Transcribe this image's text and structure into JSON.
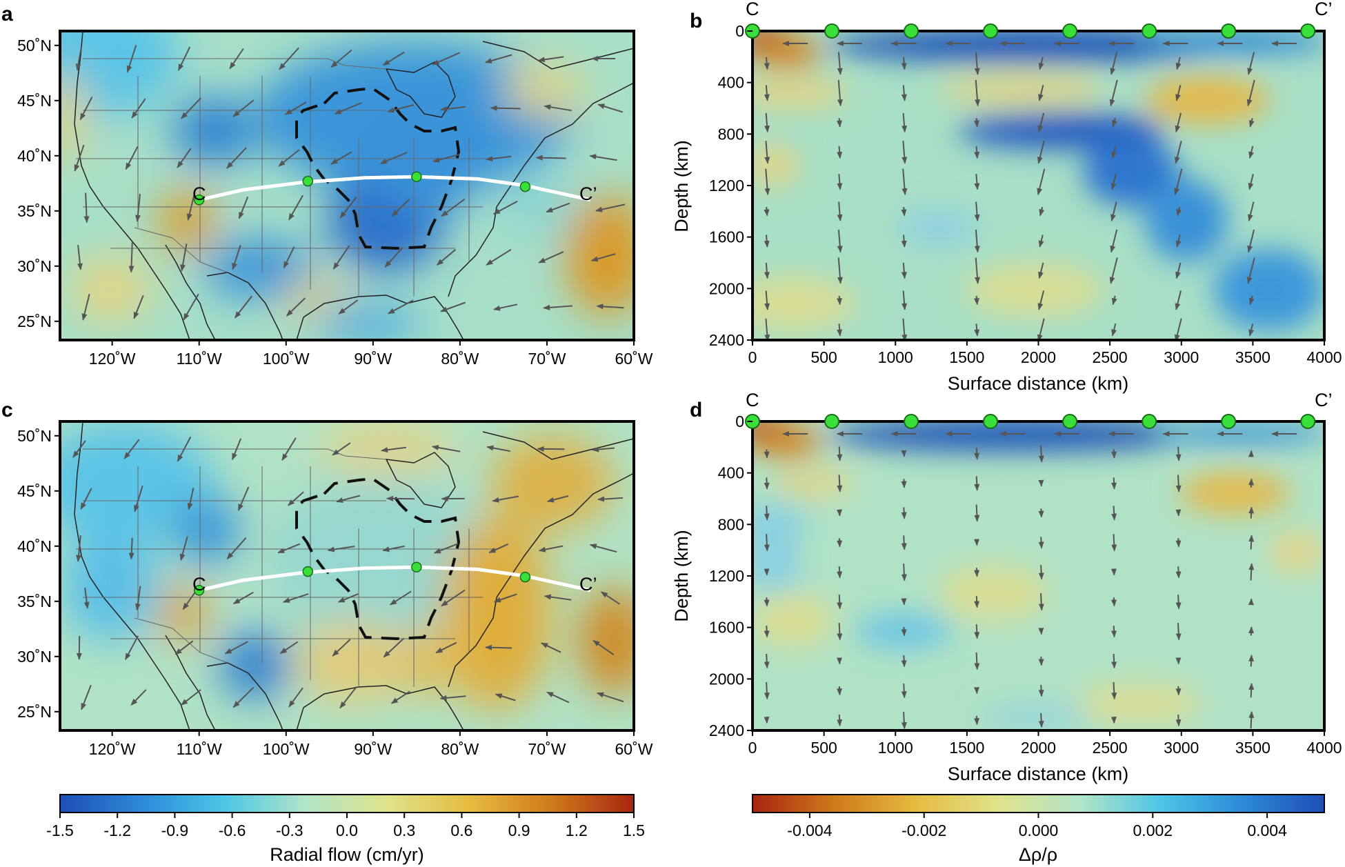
{
  "panels": {
    "a": {
      "label": "a"
    },
    "b": {
      "label": "b"
    },
    "c": {
      "label": "c"
    },
    "d": {
      "label": "d"
    }
  },
  "map": {
    "lat_ticks": [
      "50˚N",
      "45˚N",
      "40˚N",
      "35˚N",
      "30˚N",
      "25˚N"
    ],
    "lon_ticks": [
      "120˚W",
      "110˚W",
      "100˚W",
      "90˚W",
      "80˚W",
      "70˚W",
      "60˚W"
    ],
    "profile_start_label": "C",
    "profile_end_label": "C’",
    "profile_line": [
      [
        -110,
        36
      ],
      [
        -105,
        36.9
      ],
      [
        -98,
        37.6
      ],
      [
        -91,
        38.0
      ],
      [
        -85,
        38.1
      ],
      [
        -78,
        37.9
      ],
      [
        -72.5,
        37.3
      ],
      [
        -65,
        36
      ]
    ],
    "profile_points": [
      [
        -110,
        36
      ],
      [
        -97.5,
        37.7
      ],
      [
        -85,
        38.1
      ],
      [
        -72.5,
        37.2
      ]
    ]
  },
  "section": {
    "end_left": "C",
    "end_right": "C’",
    "depth_ticks": [
      "0",
      "400",
      "800",
      "1200",
      "1600",
      "2000",
      "2400"
    ],
    "distance_ticks": [
      "0",
      "500",
      "1000",
      "1500",
      "2000",
      "2500",
      "3000",
      "3500",
      "4000"
    ],
    "ylabel": "Depth (km)",
    "xlabel": "Surface distance (km)",
    "surface_points_km": [
      0,
      555,
      1110,
      1665,
      2220,
      2775,
      3330,
      3885
    ]
  },
  "colorbars": {
    "left": {
      "ticks": [
        "-1.5",
        "-1.2",
        "-0.9",
        "-0.6",
        "-0.3",
        "0.0",
        "0.3",
        "0.6",
        "0.9",
        "1.2",
        "1.5"
      ],
      "label": "Radial flow (cm/yr)",
      "stops": [
        "#1f4eb5",
        "#2c8ad8",
        "#4cc6e6",
        "#b2e5c8",
        "#dfe38a",
        "#e6bb40",
        "#cf7a1b",
        "#a82510"
      ]
    },
    "right": {
      "ticks": [
        "-0.004",
        "-0.002",
        "0.000",
        "0.002",
        "0.004"
      ],
      "label": "Δρ/ρ",
      "stops": [
        "#a82510",
        "#cf7a1b",
        "#e6bb40",
        "#dfe38a",
        "#b2e5c8",
        "#4cc6e6",
        "#2c8ad8",
        "#1f4eb5"
      ]
    }
  },
  "colors": {
    "profile_point": "#39e03a",
    "profile_line": "#ffffff",
    "arrow": "#555555",
    "background": "#a7dfc8"
  }
}
